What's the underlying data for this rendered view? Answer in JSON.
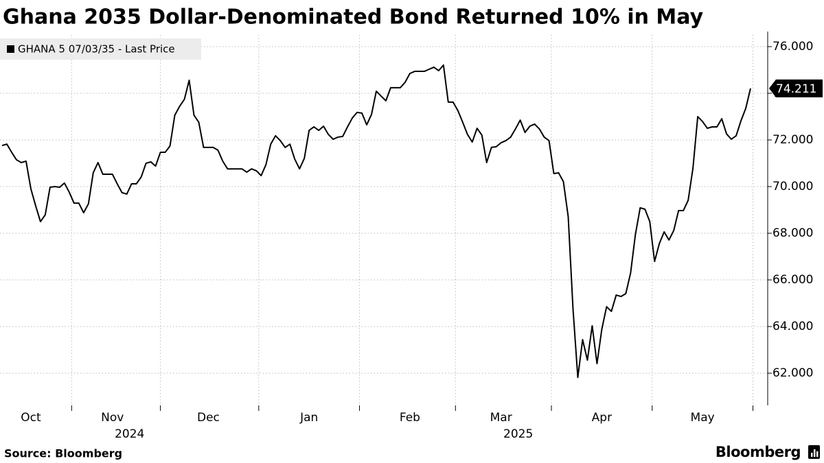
{
  "chart_data": {
    "type": "line",
    "title": "Ghana 2035 Dollar-Denominated Bond Returned 10% in May",
    "source": "Source: Bloomberg",
    "brand": "Bloomberg",
    "categories": [
      null,
      null,
      null,
      null,
      null,
      null,
      "Oct",
      null,
      null,
      null,
      null,
      null,
      null,
      null,
      null,
      null,
      null,
      null,
      null,
      null,
      null,
      null,
      null,
      "Nov",
      null,
      null,
      null,
      null,
      null,
      null,
      null,
      null,
      null,
      null,
      null,
      null,
      null,
      null,
      null,
      null,
      null,
      null,
      null,
      "Dec",
      null,
      null,
      null,
      null,
      null,
      null,
      null,
      null,
      null,
      null,
      null,
      null,
      null,
      null,
      null,
      null,
      null,
      null,
      null,
      null,
      "Jan",
      null,
      null,
      null,
      null,
      null,
      null,
      null,
      null,
      null,
      null,
      null,
      null,
      null,
      null,
      null,
      null,
      null,
      null,
      null,
      null,
      "Feb",
      null,
      null,
      null,
      null,
      null,
      null,
      null,
      null,
      null,
      null,
      null,
      null,
      null,
      null,
      null,
      null,
      null,
      null,
      "Mar",
      null,
      null,
      null,
      null,
      null,
      null,
      null,
      null,
      null,
      null,
      null,
      null,
      null,
      null,
      null,
      null,
      null,
      null,
      null,
      null,
      "Apr",
      null,
      null,
      null,
      null,
      null,
      null,
      null,
      null,
      null,
      null,
      null,
      null,
      null,
      null,
      null,
      null,
      null,
      null,
      null,
      null,
      "May",
      null,
      null,
      null,
      null,
      null,
      null,
      null,
      null,
      null,
      null
    ],
    "year_labels": [
      {
        "month": "Nov",
        "label": "2024"
      },
      {
        "month": "Mar",
        "label": "2025"
      }
    ],
    "series": [
      {
        "name": "GHANA 5 07/03/35 - Last Price",
        "color": "#000000",
        "values": [
          71.76,
          71.82,
          71.47,
          71.15,
          71.03,
          71.09,
          69.91,
          69.18,
          68.5,
          68.79,
          69.97,
          70.0,
          69.97,
          70.15,
          69.76,
          69.29,
          69.29,
          68.88,
          69.26,
          70.59,
          71.03,
          70.53,
          70.53,
          70.53,
          70.12,
          69.74,
          69.68,
          70.12,
          70.12,
          70.41,
          71.0,
          71.06,
          70.88,
          71.47,
          71.47,
          71.74,
          73.06,
          73.44,
          73.74,
          74.56,
          73.06,
          72.76,
          71.68,
          71.68,
          71.68,
          71.56,
          71.09,
          70.76,
          70.76,
          70.76,
          70.76,
          70.62,
          70.76,
          70.68,
          70.47,
          70.94,
          71.82,
          72.18,
          71.97,
          71.68,
          71.82,
          71.18,
          70.76,
          71.21,
          72.41,
          72.56,
          72.41,
          72.59,
          72.24,
          72.03,
          72.12,
          72.15,
          72.56,
          72.94,
          73.18,
          73.15,
          72.65,
          73.09,
          74.09,
          73.88,
          73.68,
          74.24,
          74.24,
          74.24,
          74.47,
          74.85,
          74.94,
          74.94,
          74.94,
          75.03,
          75.12,
          74.97,
          75.21,
          73.62,
          73.62,
          73.26,
          72.76,
          72.24,
          71.91,
          72.5,
          72.21,
          71.03,
          71.68,
          71.71,
          71.88,
          71.97,
          72.12,
          72.47,
          72.85,
          72.32,
          72.59,
          72.68,
          72.47,
          72.12,
          71.97,
          70.56,
          70.59,
          70.21,
          68.71,
          64.76,
          61.82,
          63.44,
          62.56,
          64.03,
          62.41,
          63.88,
          64.85,
          64.65,
          65.35,
          65.29,
          65.41,
          66.29,
          67.94,
          69.09,
          69.03,
          68.5,
          66.79,
          67.56,
          68.06,
          67.71,
          68.12,
          68.97,
          68.97,
          69.41,
          70.79,
          73.0,
          72.79,
          72.5,
          72.56,
          72.56,
          72.91,
          72.26,
          72.03,
          72.18,
          72.82,
          73.35,
          74.211
        ]
      }
    ],
    "ylim": [
      60.62,
      76.5
    ],
    "yticks": [
      {
        "value": 62,
        "label": "62.000"
      },
      {
        "value": 64,
        "label": "64.000"
      },
      {
        "value": 66,
        "label": "66.000"
      },
      {
        "value": 68,
        "label": "68.000"
      },
      {
        "value": 70,
        "label": "70.000"
      },
      {
        "value": 72,
        "label": "72.000"
      },
      {
        "value": 74,
        "label": "74.000"
      },
      {
        "value": 76,
        "label": "76.000"
      }
    ],
    "y_axis_side": "right",
    "grid": true,
    "legend_position": "top-left"
  }
}
